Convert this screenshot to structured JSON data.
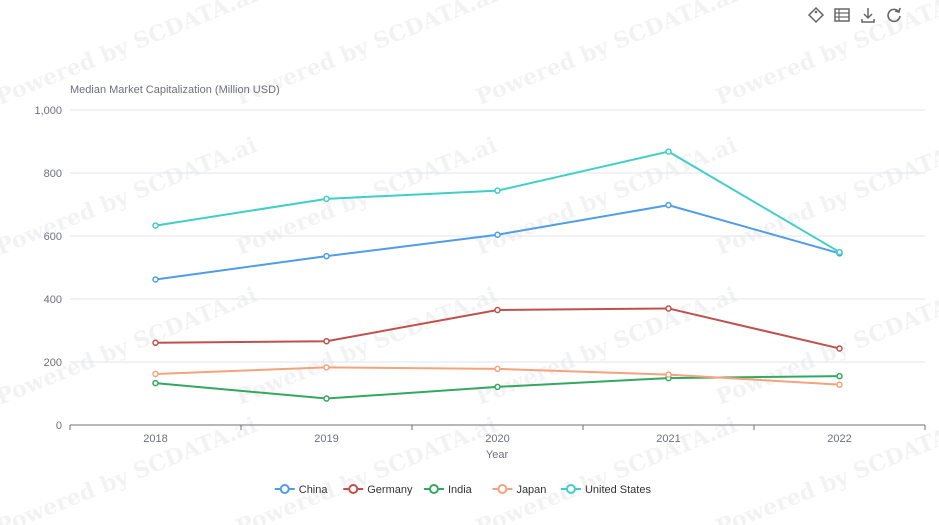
{
  "toolbar": {
    "icons": [
      "tag-icon",
      "data-view-icon",
      "download-icon",
      "refresh-icon"
    ]
  },
  "watermark": "Powered by SCDATA.ai",
  "chart_data": {
    "type": "line",
    "title": "",
    "ylabel": "Median Market Capitalization (Million USD)",
    "xlabel": "Year",
    "categories": [
      "2018",
      "2019",
      "2020",
      "2021",
      "2022"
    ],
    "ylim": [
      0,
      1000
    ],
    "yticks": [
      "0",
      "200",
      "400",
      "600",
      "800",
      "1,000"
    ],
    "ytick_values": [
      0,
      200,
      400,
      600,
      800,
      1000
    ],
    "grid": true,
    "legend_position": "bottom-center",
    "series": [
      {
        "name": "China",
        "color": "#4e9de6",
        "values": [
          462,
          536,
          604,
          698,
          545
        ]
      },
      {
        "name": "Germany",
        "color": "#c0504d",
        "values": [
          261,
          266,
          365,
          370,
          243
        ]
      },
      {
        "name": "India",
        "color": "#33a860",
        "values": [
          133,
          84,
          121,
          149,
          155
        ]
      },
      {
        "name": "Japan",
        "color": "#f4a37c",
        "values": [
          162,
          183,
          178,
          160,
          128
        ]
      },
      {
        "name": "United States",
        "color": "#40cfc6",
        "values": [
          633,
          718,
          744,
          868,
          549
        ]
      }
    ]
  }
}
